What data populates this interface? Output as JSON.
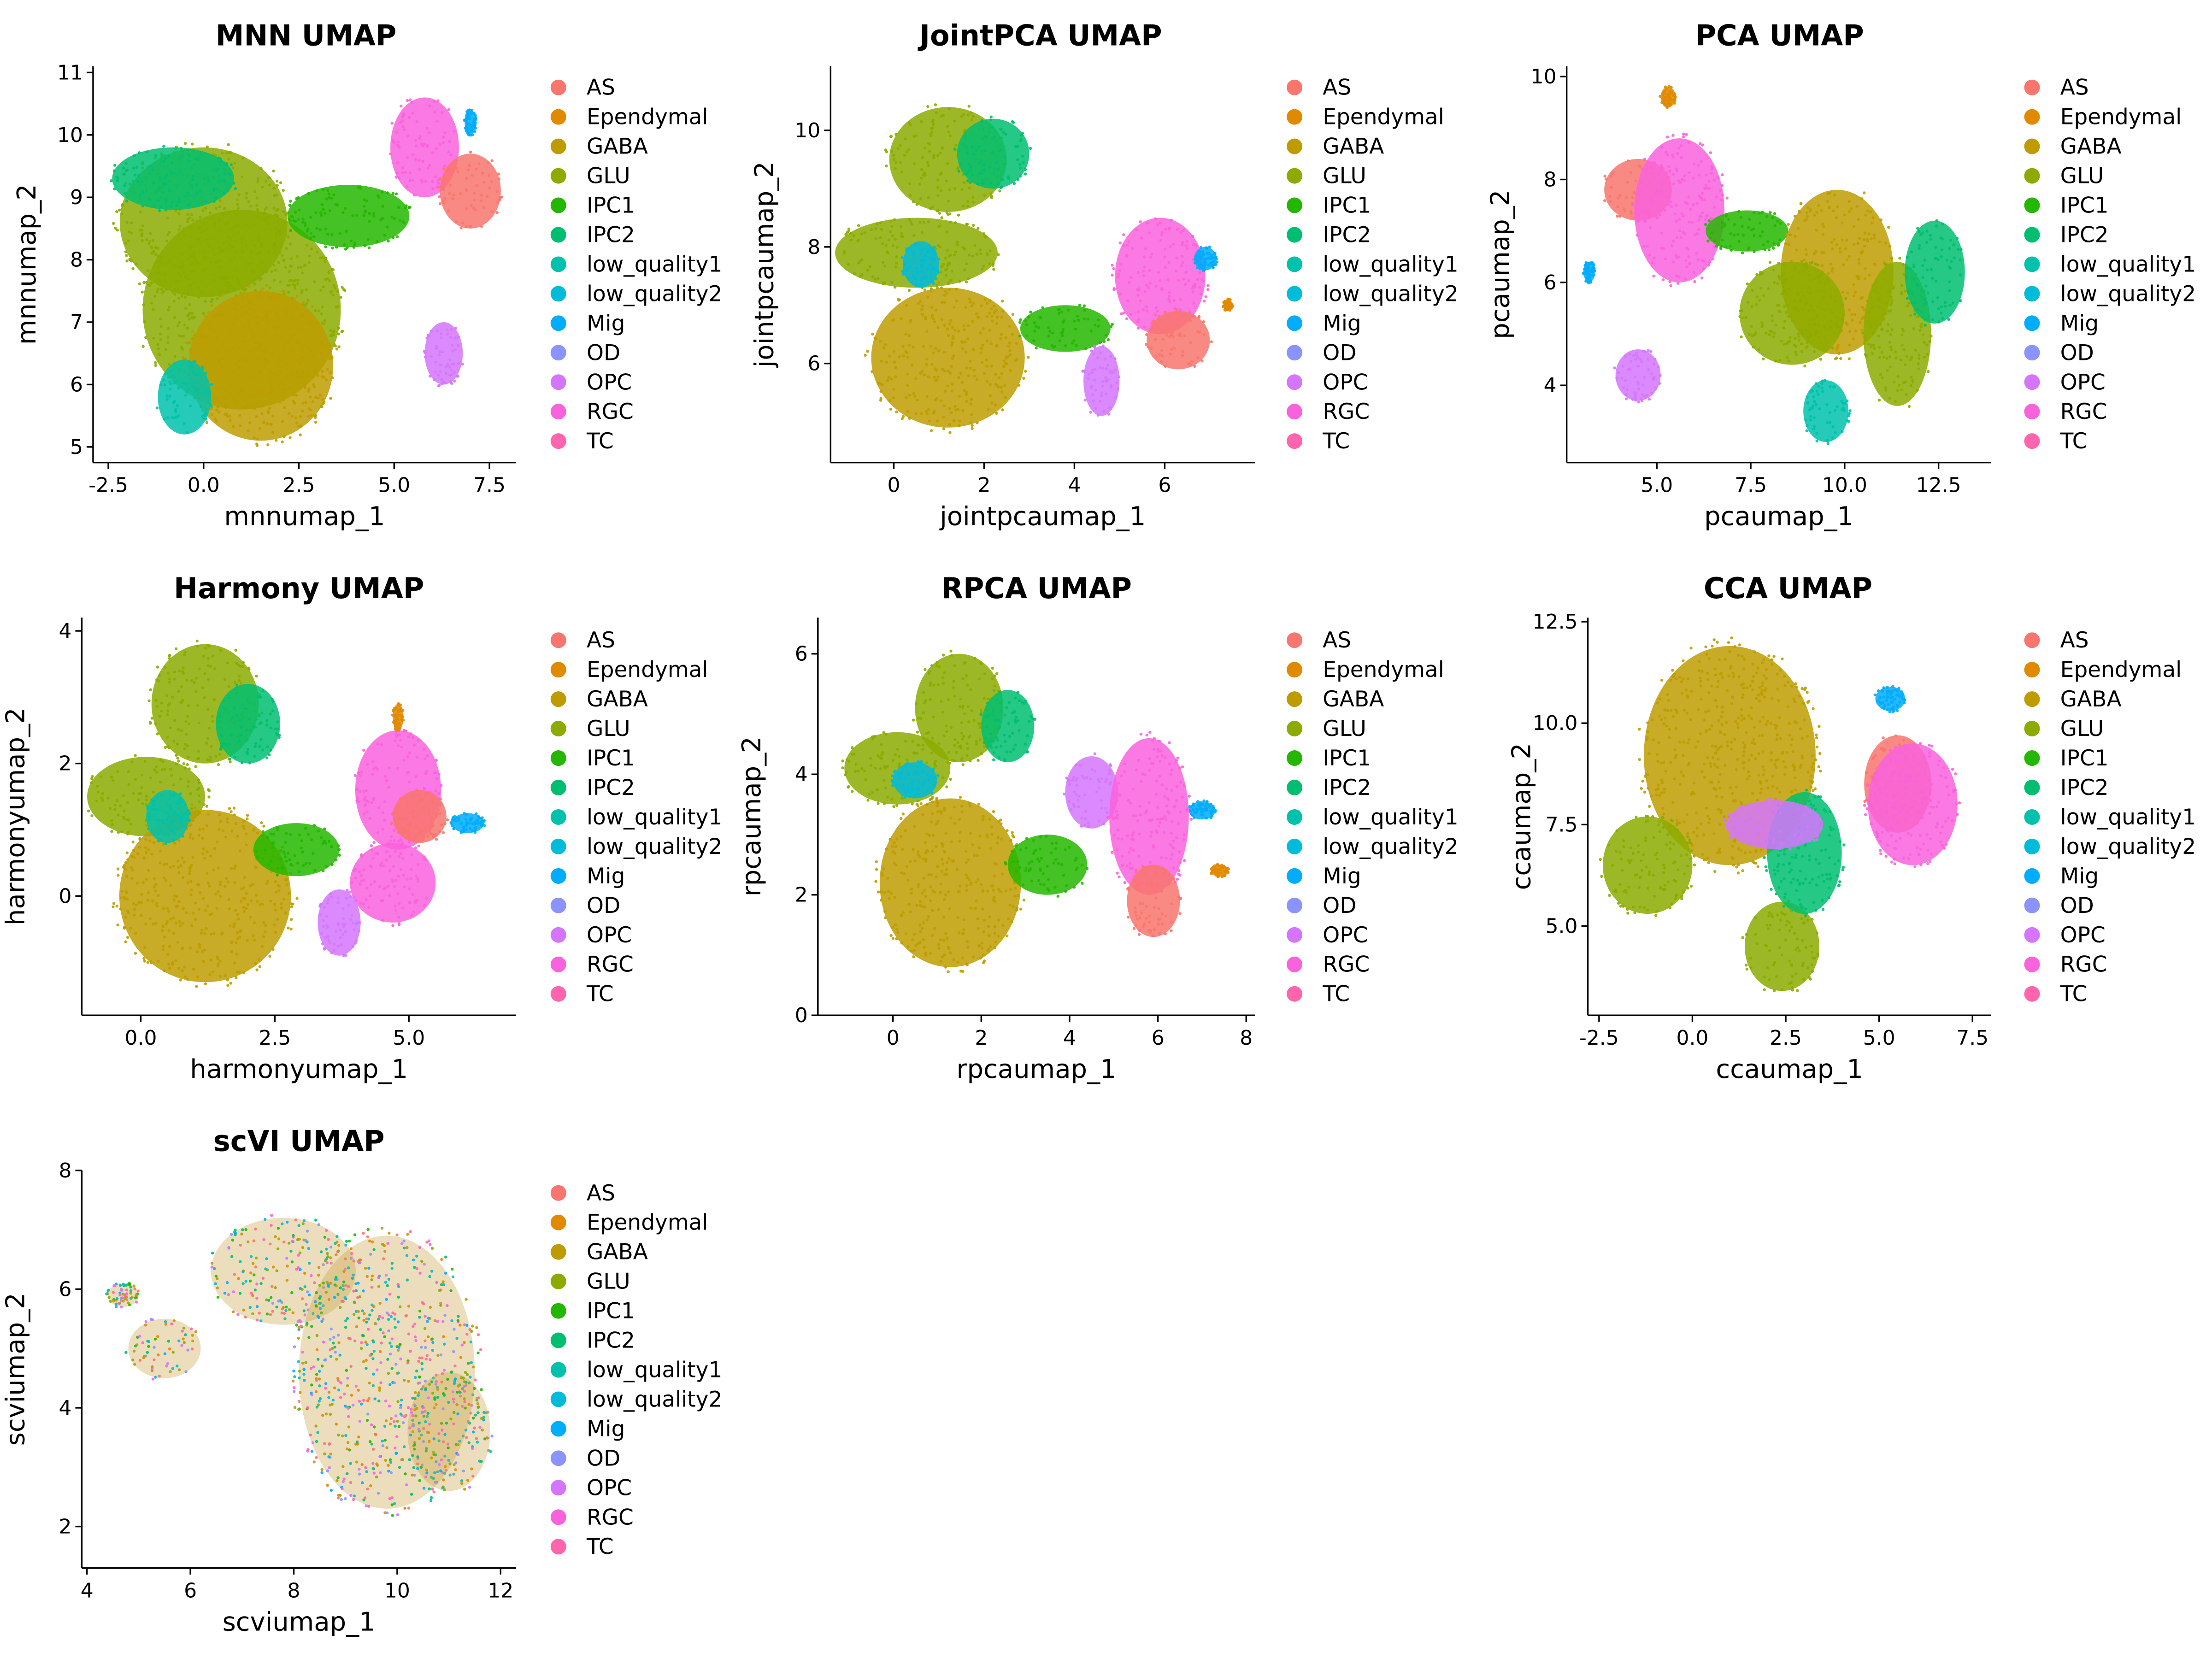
{
  "legend": {
    "items": [
      {
        "label": "AS",
        "color": "#F8766D"
      },
      {
        "label": "Ependymal",
        "color": "#E18A00"
      },
      {
        "label": "GABA",
        "color": "#BE9C00"
      },
      {
        "label": "GLU",
        "color": "#8CAB00"
      },
      {
        "label": "IPC1",
        "color": "#24B700"
      },
      {
        "label": "IPC2",
        "color": "#00BE70"
      },
      {
        "label": "low_quality1",
        "color": "#00C1AB"
      },
      {
        "label": "low_quality2",
        "color": "#00BBDA"
      },
      {
        "label": "Mig",
        "color": "#00ACFC"
      },
      {
        "label": "OD",
        "color": "#8B93FF"
      },
      {
        "label": "OPC",
        "color": "#D575FE"
      },
      {
        "label": "RGC",
        "color": "#F962DD"
      },
      {
        "label": "TC",
        "color": "#FF65AC"
      }
    ]
  },
  "chart_data": [
    {
      "type": "scatter",
      "title": "MNN UMAP",
      "xlabel": "mnnumap_1",
      "ylabel": "mnnumap_2",
      "xlim": [
        -2.9,
        8.2
      ],
      "ylim": [
        4.75,
        11.1
      ],
      "xticks": [
        -2.5,
        0.0,
        2.5,
        5.0,
        7.5
      ],
      "xtick_labels": [
        "-2.5",
        "0.0",
        "2.5",
        "5.0",
        "7.5"
      ],
      "yticks": [
        5,
        6,
        7,
        8,
        9,
        10,
        11
      ],
      "ytick_labels": [
        "5",
        "6",
        "7",
        "8",
        "9",
        "10",
        "11"
      ],
      "clusters": [
        {
          "label": "GLU",
          "x": 0.0,
          "y": 8.6,
          "rx": 2.2,
          "ry": 1.2
        },
        {
          "label": "GLU",
          "x": 1.0,
          "y": 7.2,
          "rx": 2.6,
          "ry": 1.6
        },
        {
          "label": "IPC2",
          "x": -0.8,
          "y": 9.3,
          "rx": 1.6,
          "ry": 0.5
        },
        {
          "label": "GABA",
          "x": 1.5,
          "y": 6.3,
          "rx": 1.9,
          "ry": 1.2
        },
        {
          "label": "low_quality1",
          "x": -0.5,
          "y": 5.8,
          "rx": 0.7,
          "ry": 0.6
        },
        {
          "label": "IPC1",
          "x": 3.8,
          "y": 8.7,
          "rx": 1.6,
          "ry": 0.5
        },
        {
          "label": "RGC",
          "x": 5.8,
          "y": 9.8,
          "rx": 0.9,
          "ry": 0.8
        },
        {
          "label": "AS",
          "x": 7.0,
          "y": 9.1,
          "rx": 0.8,
          "ry": 0.6
        },
        {
          "label": "OPC",
          "x": 6.3,
          "y": 6.5,
          "rx": 0.5,
          "ry": 0.5
        },
        {
          "label": "Mig",
          "x": 7.0,
          "y": 10.2,
          "rx": 0.15,
          "ry": 0.2
        }
      ]
    },
    {
      "type": "scatter",
      "title": "JointPCA UMAP",
      "xlabel": "jointpcaumap_1",
      "ylabel": "jointpcaumap_2",
      "xlim": [
        -1.4,
        8.0
      ],
      "ylim": [
        4.3,
        11.1
      ],
      "xticks": [
        0,
        2,
        4,
        6
      ],
      "xtick_labels": [
        "0",
        "2",
        "4",
        "6"
      ],
      "yticks": [
        6,
        8,
        10
      ],
      "ytick_labels": [
        "6",
        "8",
        "10"
      ],
      "clusters": [
        {
          "label": "GLU",
          "x": 1.2,
          "y": 9.5,
          "rx": 1.3,
          "ry": 0.9
        },
        {
          "label": "IPC2",
          "x": 2.2,
          "y": 9.6,
          "rx": 0.8,
          "ry": 0.6
        },
        {
          "label": "GLU",
          "x": 0.5,
          "y": 7.9,
          "rx": 1.8,
          "ry": 0.6
        },
        {
          "label": "GABA",
          "x": 1.2,
          "y": 6.1,
          "rx": 1.7,
          "ry": 1.2
        },
        {
          "label": "low_quality2",
          "x": 0.6,
          "y": 7.7,
          "rx": 0.4,
          "ry": 0.4
        },
        {
          "label": "IPC1",
          "x": 3.8,
          "y": 6.6,
          "rx": 1.0,
          "ry": 0.4
        },
        {
          "label": "RGC",
          "x": 5.9,
          "y": 7.5,
          "rx": 1.0,
          "ry": 1.0
        },
        {
          "label": "AS",
          "x": 6.3,
          "y": 6.4,
          "rx": 0.7,
          "ry": 0.5
        },
        {
          "label": "OPC",
          "x": 4.6,
          "y": 5.7,
          "rx": 0.4,
          "ry": 0.6
        },
        {
          "label": "Mig",
          "x": 6.9,
          "y": 7.8,
          "rx": 0.25,
          "ry": 0.2
        },
        {
          "label": "Ependymal",
          "x": 7.4,
          "y": 7.0,
          "rx": 0.1,
          "ry": 0.1
        }
      ]
    },
    {
      "type": "scatter",
      "title": "PCA UMAP",
      "xlabel": "pcaumap_1",
      "ylabel": "pcaumap_2",
      "xlim": [
        2.6,
        13.9
      ],
      "ylim": [
        2.5,
        10.2
      ],
      "xticks": [
        5.0,
        7.5,
        10.0,
        12.5
      ],
      "xtick_labels": [
        "5.0",
        "7.5",
        "10.0",
        "12.5"
      ],
      "yticks": [
        4,
        6,
        8,
        10
      ],
      "ytick_labels": [
        "4",
        "6",
        "8",
        "10"
      ],
      "clusters": [
        {
          "label": "AS",
          "x": 4.5,
          "y": 7.8,
          "rx": 0.9,
          "ry": 0.6
        },
        {
          "label": "RGC",
          "x": 5.6,
          "y": 7.4,
          "rx": 1.2,
          "ry": 1.4
        },
        {
          "label": "IPC1",
          "x": 7.4,
          "y": 7.0,
          "rx": 1.1,
          "ry": 0.4
        },
        {
          "label": "GABA",
          "x": 9.8,
          "y": 6.2,
          "rx": 1.5,
          "ry": 1.6
        },
        {
          "label": "GLU",
          "x": 8.6,
          "y": 5.4,
          "rx": 1.4,
          "ry": 1.0
        },
        {
          "label": "GLU",
          "x": 11.4,
          "y": 5.0,
          "rx": 0.9,
          "ry": 1.4
        },
        {
          "label": "IPC2",
          "x": 12.4,
          "y": 6.2,
          "rx": 0.8,
          "ry": 1.0
        },
        {
          "label": "low_quality1",
          "x": 9.5,
          "y": 3.5,
          "rx": 0.6,
          "ry": 0.6
        },
        {
          "label": "OPC",
          "x": 4.5,
          "y": 4.2,
          "rx": 0.6,
          "ry": 0.5
        },
        {
          "label": "Mig",
          "x": 3.2,
          "y": 6.2,
          "rx": 0.15,
          "ry": 0.2
        },
        {
          "label": "Ependymal",
          "x": 5.3,
          "y": 9.6,
          "rx": 0.2,
          "ry": 0.2
        }
      ]
    },
    {
      "type": "scatter",
      "title": "Harmony UMAP",
      "xlabel": "harmonyumap_1",
      "ylabel": "harmonyumap_2",
      "xlim": [
        -1.1,
        7.0
      ],
      "ylim": [
        -1.8,
        4.2
      ],
      "xticks": [
        0.0,
        2.5,
        5.0
      ],
      "xtick_labels": [
        "0.0",
        "2.5",
        "5.0"
      ],
      "yticks": [
        0,
        2,
        4
      ],
      "ytick_labels": [
        "0",
        "2",
        "4"
      ],
      "clusters": [
        {
          "label": "GLU",
          "x": 1.2,
          "y": 2.9,
          "rx": 1.0,
          "ry": 0.9
        },
        {
          "label": "GLU",
          "x": 0.1,
          "y": 1.5,
          "rx": 1.1,
          "ry": 0.6
        },
        {
          "label": "IPC2",
          "x": 2.0,
          "y": 2.6,
          "rx": 0.6,
          "ry": 0.6
        },
        {
          "label": "GABA",
          "x": 1.2,
          "y": 0.0,
          "rx": 1.6,
          "ry": 1.3
        },
        {
          "label": "low_quality1",
          "x": 0.5,
          "y": 1.2,
          "rx": 0.4,
          "ry": 0.4
        },
        {
          "label": "IPC1",
          "x": 2.9,
          "y": 0.7,
          "rx": 0.8,
          "ry": 0.4
        },
        {
          "label": "RGC",
          "x": 4.8,
          "y": 1.6,
          "rx": 0.8,
          "ry": 0.9
        },
        {
          "label": "AS",
          "x": 5.2,
          "y": 1.2,
          "rx": 0.5,
          "ry": 0.4
        },
        {
          "label": "RGC",
          "x": 4.7,
          "y": 0.2,
          "rx": 0.8,
          "ry": 0.6
        },
        {
          "label": "OPC",
          "x": 3.7,
          "y": -0.4,
          "rx": 0.4,
          "ry": 0.5
        },
        {
          "label": "Mig",
          "x": 6.1,
          "y": 1.1,
          "rx": 0.3,
          "ry": 0.15
        },
        {
          "label": "Ependymal",
          "x": 4.8,
          "y": 2.7,
          "rx": 0.1,
          "ry": 0.2
        }
      ]
    },
    {
      "type": "scatter",
      "title": "RPCA UMAP",
      "xlabel": "rpcaumap_1",
      "ylabel": "rpcaumap_2",
      "xlim": [
        -1.7,
        8.2
      ],
      "ylim": [
        0,
        6.6
      ],
      "xticks": [
        0,
        2,
        4,
        6,
        8
      ],
      "xtick_labels": [
        "0",
        "2",
        "4",
        "6",
        "8"
      ],
      "yticks": [
        0,
        2,
        4,
        6
      ],
      "ytick_labels": [
        "0",
        "2",
        "4",
        "6"
      ],
      "clusters": [
        {
          "label": "GLU",
          "x": 1.5,
          "y": 5.1,
          "rx": 1.0,
          "ry": 0.9
        },
        {
          "label": "GLU",
          "x": 0.1,
          "y": 4.1,
          "rx": 1.2,
          "ry": 0.6
        },
        {
          "label": "IPC2",
          "x": 2.6,
          "y": 4.8,
          "rx": 0.6,
          "ry": 0.6
        },
        {
          "label": "GABA",
          "x": 1.3,
          "y": 2.2,
          "rx": 1.6,
          "ry": 1.4
        },
        {
          "label": "low_quality2",
          "x": 0.5,
          "y": 3.9,
          "rx": 0.5,
          "ry": 0.3
        },
        {
          "label": "IPC1",
          "x": 3.5,
          "y": 2.5,
          "rx": 0.9,
          "ry": 0.5
        },
        {
          "label": "OPC",
          "x": 4.5,
          "y": 3.7,
          "rx": 0.6,
          "ry": 0.6
        },
        {
          "label": "RGC",
          "x": 5.8,
          "y": 3.3,
          "rx": 0.9,
          "ry": 1.3
        },
        {
          "label": "AS",
          "x": 5.9,
          "y": 1.9,
          "rx": 0.6,
          "ry": 0.6
        },
        {
          "label": "Mig",
          "x": 7.0,
          "y": 3.4,
          "rx": 0.3,
          "ry": 0.15
        },
        {
          "label": "Ependymal",
          "x": 7.4,
          "y": 2.4,
          "rx": 0.2,
          "ry": 0.1
        }
      ]
    },
    {
      "type": "scatter",
      "title": "CCA UMAP",
      "xlabel": "ccaumap_1",
      "ylabel": "ccaumap_2",
      "xlim": [
        -2.8,
        8.0
      ],
      "ylim": [
        2.8,
        12.6
      ],
      "xticks": [
        -2.5,
        0.0,
        2.5,
        5.0,
        7.5
      ],
      "xtick_labels": [
        "-2.5",
        "0.0",
        "2.5",
        "5.0",
        "7.5"
      ],
      "yticks": [
        5.0,
        7.5,
        10.0,
        12.5
      ],
      "ytick_labels": [
        "5.0",
        "7.5",
        "10.0",
        "12.5"
      ],
      "clusters": [
        {
          "label": "GABA",
          "x": 1.0,
          "y": 9.2,
          "rx": 2.3,
          "ry": 2.7
        },
        {
          "label": "GLU",
          "x": -1.2,
          "y": 6.5,
          "rx": 1.2,
          "ry": 1.2
        },
        {
          "label": "GLU",
          "x": 2.4,
          "y": 4.5,
          "rx": 1.0,
          "ry": 1.1
        },
        {
          "label": "IPC2",
          "x": 3.0,
          "y": 6.8,
          "rx": 1.0,
          "ry": 1.5
        },
        {
          "label": "OPC",
          "x": 2.2,
          "y": 7.5,
          "rx": 1.3,
          "ry": 0.6
        },
        {
          "label": "AS",
          "x": 5.5,
          "y": 8.5,
          "rx": 0.9,
          "ry": 1.2
        },
        {
          "label": "RGC",
          "x": 5.9,
          "y": 8.0,
          "rx": 1.2,
          "ry": 1.5
        },
        {
          "label": "Mig",
          "x": 5.3,
          "y": 10.6,
          "rx": 0.4,
          "ry": 0.3
        }
      ]
    },
    {
      "type": "scatter",
      "title": "scVI UMAP",
      "xlabel": "scviumap_1",
      "ylabel": "scviumap_2",
      "xlim": [
        3.9,
        12.3
      ],
      "ylim": [
        1.3,
        8.0
      ],
      "xticks": [
        4,
        6,
        8,
        10,
        12
      ],
      "xtick_labels": [
        "4",
        "6",
        "8",
        "10",
        "12"
      ],
      "yticks": [
        2,
        4,
        6,
        8
      ],
      "ytick_labels": [
        "2",
        "4",
        "6",
        "8"
      ],
      "clusters": [
        {
          "label": "mixed",
          "x": 9.8,
          "y": 4.6,
          "rx": 1.7,
          "ry": 2.3
        },
        {
          "label": "mixed",
          "x": 7.8,
          "y": 6.3,
          "rx": 1.4,
          "ry": 0.9
        },
        {
          "label": "mixed",
          "x": 5.5,
          "y": 5.0,
          "rx": 0.7,
          "ry": 0.5
        },
        {
          "label": "mixed",
          "x": 11.0,
          "y": 3.6,
          "rx": 0.8,
          "ry": 1.0
        },
        {
          "label": "mixed",
          "x": 4.7,
          "y": 5.9,
          "rx": 0.3,
          "ry": 0.2
        }
      ]
    }
  ]
}
